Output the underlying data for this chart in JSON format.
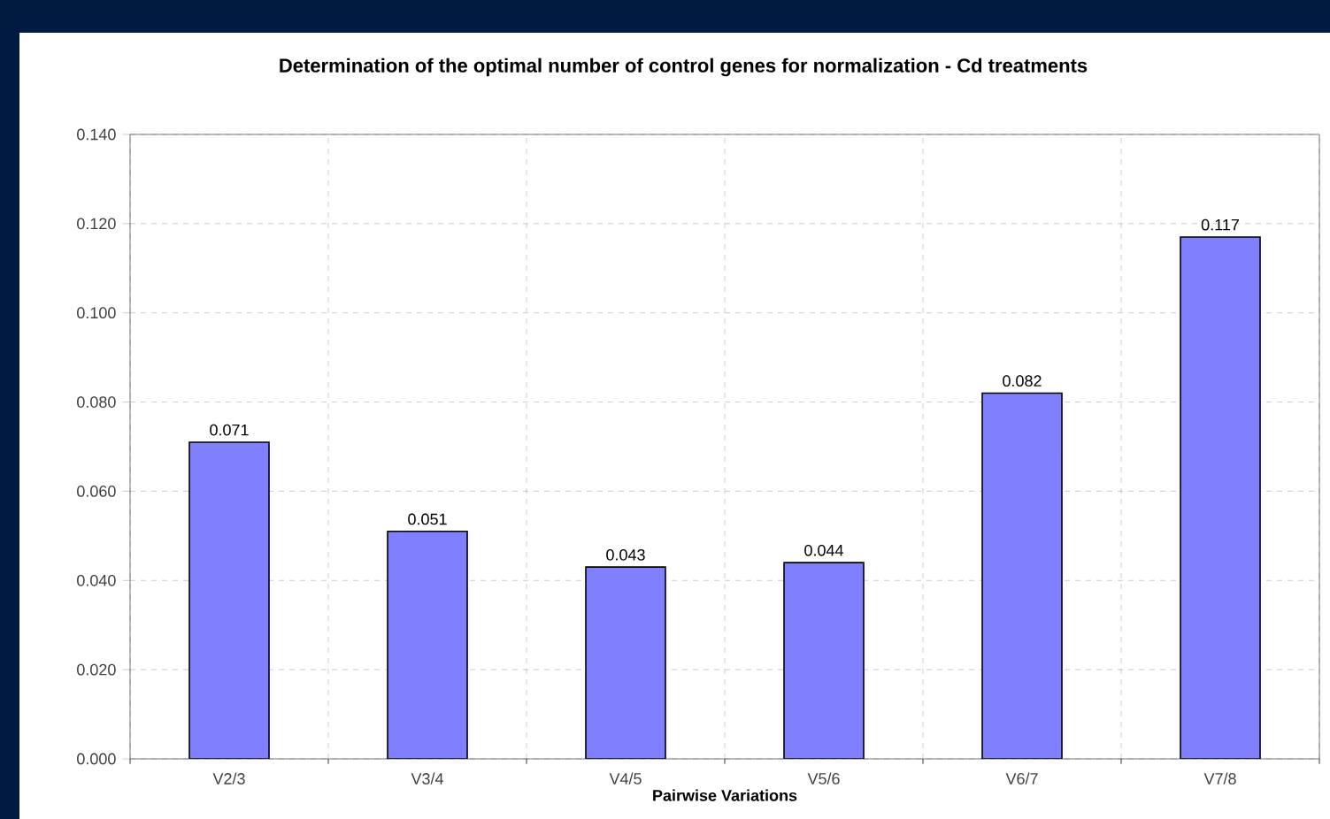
{
  "chart_data": {
    "type": "bar",
    "title": "Determination of the optimal number of control genes for normalization - Cd treatments",
    "xlabel": "Pairwise Variations",
    "categories": [
      "V2/3",
      "V3/4",
      "V4/5",
      "V5/6",
      "V6/7",
      "V7/8"
    ],
    "values": [
      0.071,
      0.051,
      0.043,
      0.044,
      0.082,
      0.117
    ],
    "color": "#8080ff",
    "ylim": [
      0,
      0.14
    ],
    "yticks": [
      {
        "value": 0,
        "label": "0.000"
      },
      {
        "value": 0.02,
        "label": "0.020"
      },
      {
        "value": 0.04,
        "label": "0.040"
      },
      {
        "value": 0.06,
        "label": "0.060"
      },
      {
        "value": 0.08,
        "label": "0.080"
      },
      {
        "value": 0.1,
        "label": "0.100"
      },
      {
        "value": 0.12,
        "label": "0.120"
      },
      {
        "value": 0.14,
        "label": "0.140"
      }
    ],
    "grid": true,
    "data_labels": true
  }
}
